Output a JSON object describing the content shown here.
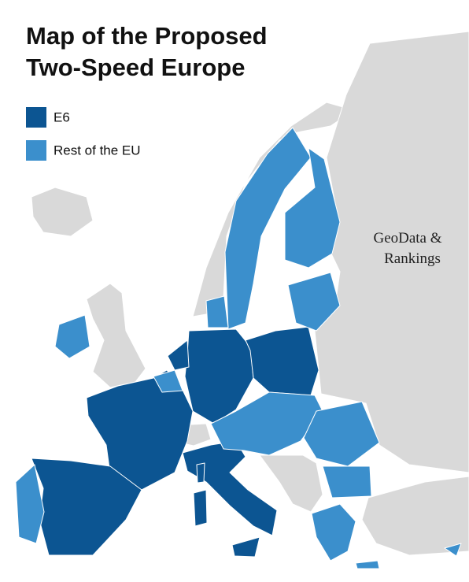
{
  "title_lines": [
    "Map of the Proposed",
    "Two-Speed Europe"
  ],
  "legend": [
    {
      "label": "E6",
      "color": "#0c5592"
    },
    {
      "label": "Rest of the EU",
      "color": "#3b8fcc"
    }
  ],
  "watermark_lines": [
    "GeoData &",
    "Rankings"
  ]
}
